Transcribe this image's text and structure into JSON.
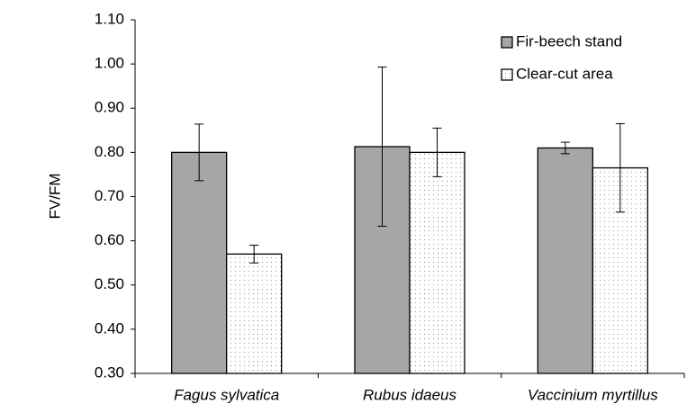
{
  "chart_data": {
    "type": "bar",
    "y_label": "FV/FM",
    "categories": [
      "Fagus sylvatica",
      "Rubus idaeus",
      "Vaccinium myrtillus"
    ],
    "series": [
      {
        "name": "Fir-beech stand",
        "color": "#a6a6a6",
        "values": [
          0.8,
          0.813,
          0.81
        ],
        "errors": [
          0.064,
          0.18,
          0.013
        ]
      },
      {
        "name": "Clear-cut area",
        "color": "#ffffff",
        "pattern": "dots",
        "values": [
          0.57,
          0.8,
          0.765
        ],
        "errors": [
          0.02,
          0.055,
          0.1
        ]
      }
    ],
    "ylim": [
      0.3,
      1.1
    ],
    "yticks": [
      {
        "value": 0.3,
        "label": "0.30"
      },
      {
        "value": 0.4,
        "label": "0.40"
      },
      {
        "value": 0.5,
        "label": "0.50"
      },
      {
        "value": 0.6,
        "label": "0.60"
      },
      {
        "value": 0.7,
        "label": "0.70"
      },
      {
        "value": 0.8,
        "label": "0.80"
      },
      {
        "value": 0.9,
        "label": "0.90"
      },
      {
        "value": 1.0,
        "label": "1.00"
      },
      {
        "value": 1.1,
        "label": "1.10"
      }
    ],
    "grid": false,
    "legend": "upper right"
  }
}
